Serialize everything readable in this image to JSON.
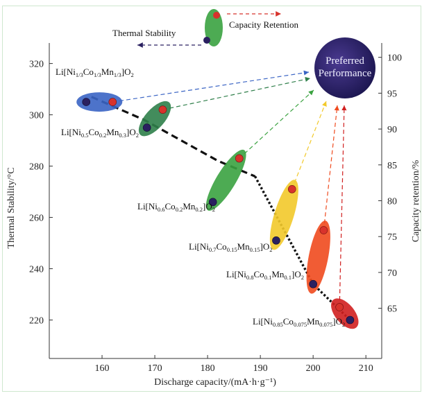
{
  "chart_data": {
    "type": "scatter",
    "xlabel": "Discharge capacity/(mA·h·g⁻¹)",
    "ylabel_left": "Thermal Stability/°C",
    "ylabel_right": "Capacity retention/%",
    "xlim": [
      150,
      213
    ],
    "ylim_left": [
      205,
      328
    ],
    "ylim_right": [
      58,
      102
    ],
    "x_ticks": [
      "160",
      "170",
      "180",
      "190",
      "200",
      "210"
    ],
    "y_left_ticks": [
      "220",
      "240",
      "260",
      "280",
      "300",
      "320"
    ],
    "y_right_ticks": [
      "65",
      "70",
      "75",
      "80",
      "85",
      "90",
      "95",
      "100"
    ],
    "legend": {
      "thermal_label": "Thermal Stability",
      "capacity_label": "Capacity Retention"
    },
    "target_label": [
      "Preferred",
      "Performance"
    ],
    "materials": [
      {
        "base": "Li[Ni",
        "sub1": "1/3",
        "el2": "Co",
        "sub2": "1/3",
        "el3": "Mn",
        "sub3": "1/3",
        "tail": "]O",
        "sub4": "2",
        "capacity_thermal": 157,
        "thermal_stability": 305,
        "capacity_retention": 162,
        "retention_y": 305,
        "color": "#3a64c4"
      },
      {
        "base": "Li[Ni",
        "sub1": "0.5",
        "el2": "Co",
        "sub2": "0.2",
        "el3": "Mn",
        "sub3": "0.3",
        "tail": "]O",
        "sub4": "2",
        "capacity_thermal": 168.5,
        "thermal_stability": 295,
        "capacity_retention": 171.5,
        "retention_y": 302,
        "color": "#2f7f4a"
      },
      {
        "base": "Li[Ni",
        "sub1": "0.6",
        "el2": "Co",
        "sub2": "0.2",
        "el3": "Mn",
        "sub3": "0.2",
        "tail": "]O",
        "sub4": "2",
        "capacity_thermal": 181,
        "thermal_stability": 266,
        "capacity_retention": 186,
        "retention_y": 283,
        "color": "#3aa240"
      },
      {
        "base": "Li[Ni",
        "sub1": "0.7",
        "el2": "Co",
        "sub2": "0.15",
        "el3": "Mn",
        "sub3": "0.15",
        "tail": "]O",
        "sub4": "2",
        "capacity_thermal": 193,
        "thermal_stability": 251,
        "capacity_retention": 196,
        "retention_y": 271,
        "color": "#f2c92a"
      },
      {
        "base": "Li[Ni",
        "sub1": "0.8",
        "el2": "Co",
        "sub2": "0.1",
        "el3": "Mn",
        "sub3": "0.1",
        "tail": "]O",
        "sub4": "2",
        "capacity_thermal": 200,
        "thermal_stability": 234,
        "capacity_retention": 202,
        "retention_y": 255,
        "color": "#ef4a1e"
      },
      {
        "base": "Li[Ni",
        "sub1": "0.85",
        "el2": "Co",
        "sub2": "0.075",
        "el3": "Mn",
        "sub3": "0.075",
        "tail": "]O",
        "sub4": "2",
        "capacity_thermal": 207,
        "thermal_stability": 220,
        "capacity_retention": 205,
        "retention_y": 225,
        "color": "#d01f1f"
      }
    ],
    "trend_line": [
      [
        158,
        307
      ],
      [
        168,
        298
      ],
      [
        182,
        282
      ],
      [
        189,
        276
      ],
      [
        200,
        234
      ],
      [
        207,
        220
      ]
    ],
    "colors": {
      "axis": "#333333",
      "target": "#2a2060",
      "legend_green": "#3aa240"
    }
  }
}
